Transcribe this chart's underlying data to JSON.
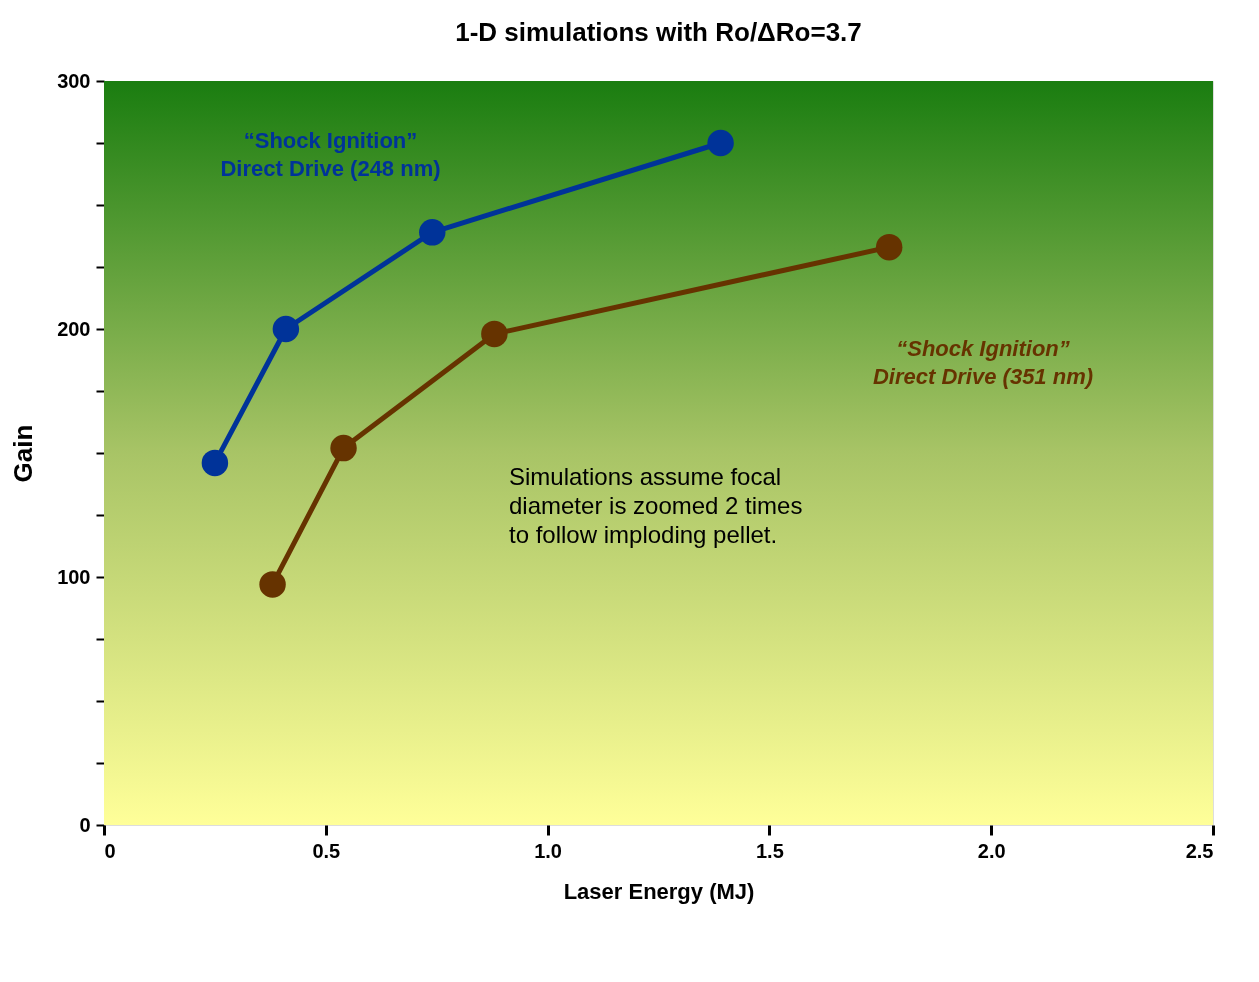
{
  "chart_data": {
    "type": "line",
    "title": "1-D simulations with Ro/ΔRo=3.7",
    "xlabel": "Laser Energy (MJ)",
    "ylabel": "Gain",
    "series": [
      {
        "name": "“Shock Ignition”\nDirect Drive (248 nm)",
        "color": "#003399",
        "x": [
          0.25,
          0.41,
          0.74,
          1.39
        ],
        "values": [
          146,
          200,
          239,
          275
        ]
      },
      {
        "name": "“Shock Ignition”\nDirect Drive (351 nm)",
        "color": "#663300",
        "x": [
          0.38,
          0.54,
          0.88,
          1.77
        ],
        "values": [
          97,
          152,
          198,
          233
        ]
      }
    ],
    "xlim": [
      0,
      2.5
    ],
    "xticks": [
      0,
      {
        "value": 0.5,
        "label": "0.5"
      },
      {
        "value": 1,
        "label": "1.0"
      },
      {
        "value": 1.5,
        "label": "1.5"
      },
      {
        "value": 2,
        "label": "2.0"
      },
      {
        "value": 2.5,
        "label": "2.5"
      }
    ],
    "ylim": [
      0,
      300
    ],
    "yticks": [
      0,
      {
        "value": 25,
        "label": null
      },
      {
        "value": 50,
        "label": null
      },
      {
        "value": 75,
        "label": null
      },
      100,
      {
        "value": 125,
        "label": null
      },
      {
        "value": 150,
        "label": null
      },
      {
        "value": 175,
        "label": null
      },
      200,
      {
        "value": 225,
        "label": null
      },
      {
        "value": 250,
        "label": null
      },
      {
        "value": 275,
        "label": null
      },
      300
    ],
    "annotations": [
      "Simulations assume focal\ndiameter is zoomed 2 times\nto follow imploding pellet."
    ],
    "grid": false,
    "legend": false,
    "marker": "circle",
    "line_style": "solid"
  }
}
